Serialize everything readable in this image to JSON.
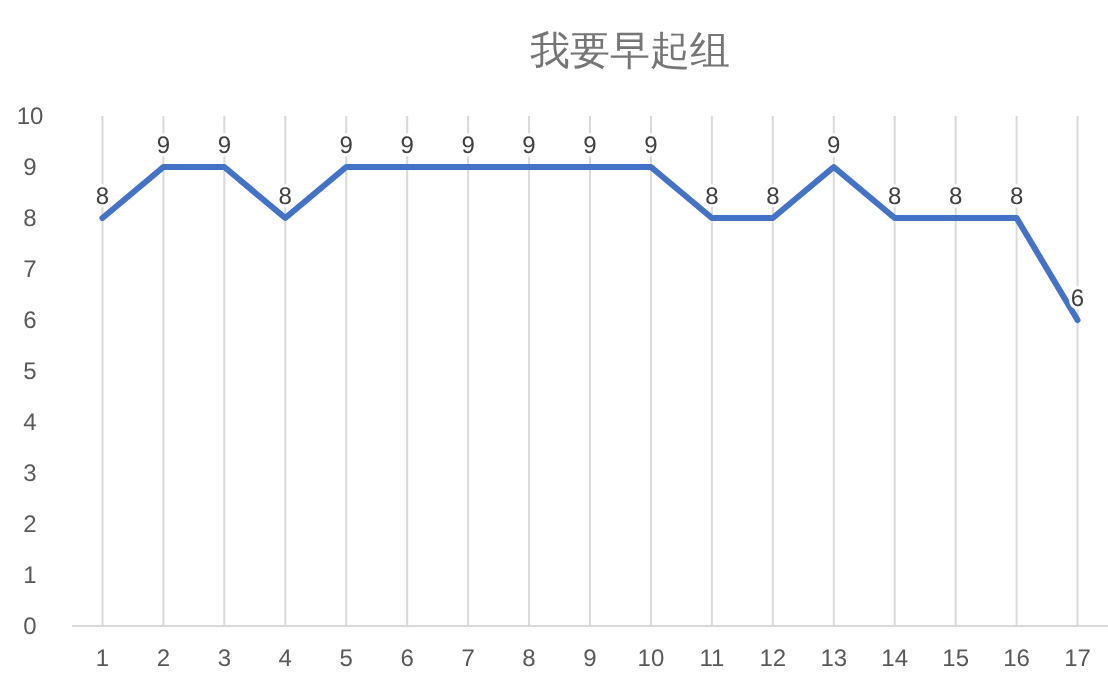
{
  "chart_data": {
    "type": "line",
    "title": "我要早起组",
    "categories": [
      "1",
      "2",
      "3",
      "4",
      "5",
      "6",
      "7",
      "8",
      "9",
      "10",
      "11",
      "12",
      "13",
      "14",
      "15",
      "16",
      "17"
    ],
    "series": [
      {
        "color": "#4472c4",
        "values": [
          8,
          9,
          9,
          8,
          9,
          9,
          9,
          9,
          9,
          9,
          8,
          8,
          9,
          8,
          8,
          8,
          6
        ]
      }
    ],
    "ylim": [
      0,
      10
    ],
    "yticks": [
      0,
      1,
      2,
      3,
      4,
      5,
      6,
      7,
      8,
      9,
      10
    ],
    "grid": "x",
    "data_labels": true,
    "line_style": "solid",
    "marker": "none"
  }
}
